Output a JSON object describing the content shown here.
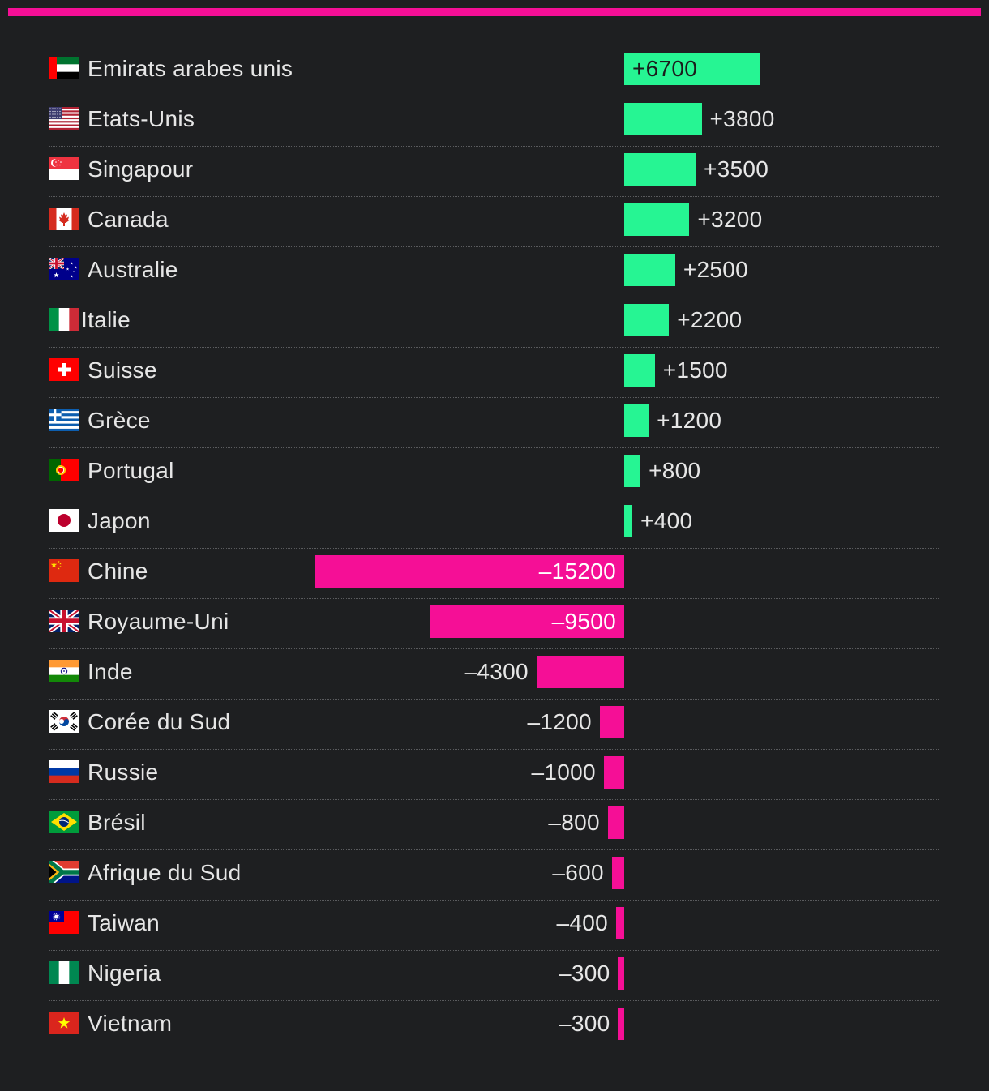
{
  "colors": {
    "background": "#1e1f21",
    "accent": "#f50f96",
    "positive": "#26f593",
    "negative": "#f50f96",
    "text": "#e6e6e6",
    "label_on_positive": "#1b1b1b",
    "label_on_negative": "#ffffff"
  },
  "chart_data": {
    "type": "bar",
    "orientation": "horizontal-diverging",
    "title": "",
    "xlabel": "",
    "ylabel": "",
    "xlim": [
      -15200,
      6700
    ],
    "grid": false,
    "legend": "none",
    "categories": [
      "Emirats arabes unis",
      "Etats-Unis",
      "Singapour",
      "Canada",
      "Australie",
      "Italie",
      "Suisse",
      "Grèce",
      "Portugal",
      "Japon",
      "Chine",
      "Royaume-Uni",
      "Inde",
      "Corée du Sud",
      "Russie",
      "Brésil",
      "Afrique du Sud",
      "Taiwan",
      "Nigeria",
      "Vietnam"
    ],
    "values": [
      6700,
      3800,
      3500,
      3200,
      2500,
      2200,
      1500,
      1200,
      800,
      400,
      -15200,
      -9500,
      -4300,
      -1200,
      -1000,
      -800,
      -600,
      -400,
      -300,
      -300
    ],
    "labels": [
      "+6700",
      "+3800",
      "+3500",
      "+3200",
      "+2500",
      "+2200",
      "+1500",
      "+1200",
      "+800",
      "+400",
      "–15200",
      "–9500",
      "–4300",
      "–1200",
      "–1000",
      "–800",
      "–600",
      "–400",
      "–300",
      "–300"
    ],
    "flags": [
      "ae-flag-icon",
      "us-flag-icon",
      "sg-flag-icon",
      "ca-flag-icon",
      "au-flag-icon",
      "it-flag-icon",
      "ch-flag-icon",
      "gr-flag-icon",
      "pt-flag-icon",
      "jp-flag-icon",
      "cn-flag-icon",
      "gb-flag-icon",
      "in-flag-icon",
      "kr-flag-icon",
      "ru-flag-icon",
      "br-flag-icon",
      "za-flag-icon",
      "tw-flag-icon",
      "ng-flag-icon",
      "vn-flag-icon"
    ]
  }
}
